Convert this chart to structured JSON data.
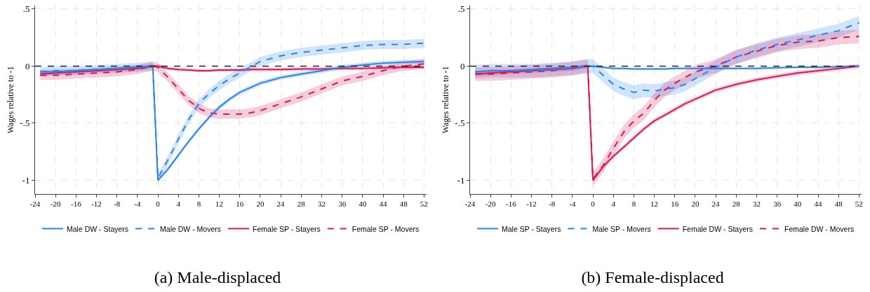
{
  "chart_data": [
    {
      "type": "line",
      "title": "(a) Male-displaced",
      "ylabel": "Wages relative to -1",
      "x": [
        -23,
        -20,
        -16,
        -12,
        -8,
        -4,
        -1,
        0,
        2,
        4,
        6,
        8,
        10,
        12,
        14,
        16,
        18,
        20,
        24,
        28,
        32,
        36,
        40,
        44,
        48,
        52
      ],
      "xlim": [
        -24,
        52.5
      ],
      "xticks": [
        -24,
        -20,
        -16,
        -12,
        -8,
        -4,
        0,
        4,
        8,
        12,
        16,
        20,
        24,
        28,
        32,
        36,
        40,
        44,
        48,
        52
      ],
      "ylim": [
        -1.12,
        0.53
      ],
      "yticks": [
        {
          "value": -1,
          "label": "-1"
        },
        {
          "value": -0.5,
          "label": "-.5"
        },
        0,
        {
          "value": 0.5,
          "label": ".5"
        }
      ],
      "grid": true,
      "legend": "bottom",
      "ref_lines": [
        {
          "axis": "y",
          "value": 0,
          "color": "#222222",
          "line_style": "dashed"
        }
      ],
      "series": [
        {
          "name": "Male DW - Stayers",
          "color": "#2a84f0",
          "line_style": "solid",
          "values": [
            -0.05,
            -0.05,
            -0.04,
            -0.03,
            -0.02,
            -0.01,
            0,
            -1,
            -0.9,
            -0.78,
            -0.66,
            -0.55,
            -0.45,
            -0.36,
            -0.29,
            -0.23,
            -0.19,
            -0.15,
            -0.1,
            -0.07,
            -0.04,
            -0.01,
            0.01,
            0.025,
            0.035,
            0.04
          ],
          "lower": [
            -0.07,
            -0.07,
            -0.06,
            -0.05,
            -0.04,
            -0.03,
            -0.02,
            -1.02,
            -0.92,
            -0.8,
            -0.68,
            -0.57,
            -0.47,
            -0.38,
            -0.31,
            -0.25,
            -0.21,
            -0.17,
            -0.12,
            -0.09,
            -0.06,
            -0.03,
            -0.01,
            0.005,
            0.015,
            0.02
          ],
          "upper": [
            -0.03,
            -0.03,
            -0.02,
            -0.01,
            0,
            0.01,
            0.02,
            -0.98,
            -0.88,
            -0.76,
            -0.64,
            -0.53,
            -0.43,
            -0.34,
            -0.27,
            -0.21,
            -0.17,
            -0.13,
            -0.08,
            -0.05,
            -0.02,
            0.01,
            0.03,
            0.045,
            0.055,
            0.06
          ]
        },
        {
          "name": "Male DW - Movers",
          "color": "#2a84f0",
          "line_style": "dashed",
          "values": [
            -0.05,
            -0.04,
            -0.04,
            -0.03,
            -0.02,
            -0.01,
            0,
            -0.98,
            -0.82,
            -0.64,
            -0.47,
            -0.33,
            -0.24,
            -0.17,
            -0.11,
            -0.06,
            -0.01,
            0.04,
            0.09,
            0.12,
            0.14,
            0.16,
            0.18,
            0.19,
            0.19,
            0.2
          ],
          "lower": [
            -0.09,
            -0.08,
            -0.08,
            -0.07,
            -0.06,
            -0.05,
            -0.04,
            -1.02,
            -0.86,
            -0.68,
            -0.51,
            -0.37,
            -0.28,
            -0.21,
            -0.15,
            -0.1,
            -0.05,
            0,
            0.05,
            0.08,
            0.1,
            0.12,
            0.14,
            0.15,
            0.15,
            0.16
          ],
          "upper": [
            -0.01,
            0,
            0,
            0.01,
            0.02,
            0.03,
            0.04,
            -0.94,
            -0.78,
            -0.6,
            -0.43,
            -0.29,
            -0.2,
            -0.13,
            -0.07,
            -0.02,
            0.03,
            0.08,
            0.13,
            0.16,
            0.18,
            0.2,
            0.22,
            0.23,
            0.23,
            0.24
          ]
        },
        {
          "name": "Female SP - Stayers",
          "color": "#d61a5c",
          "line_style": "solid",
          "values": [
            -0.07,
            -0.06,
            -0.05,
            -0.04,
            -0.03,
            -0.02,
            0,
            0,
            -0.02,
            -0.03,
            -0.035,
            -0.04,
            -0.04,
            -0.035,
            -0.035,
            -0.035,
            -0.03,
            -0.03,
            -0.03,
            -0.025,
            -0.025,
            -0.02,
            -0.02,
            -0.015,
            -0.01,
            -0.01
          ],
          "lower": [
            -0.085,
            -0.075,
            -0.065,
            -0.055,
            -0.045,
            -0.035,
            -0.015,
            -0.015,
            -0.035,
            -0.045,
            -0.05,
            -0.055,
            -0.055,
            -0.05,
            -0.05,
            -0.05,
            -0.045,
            -0.045,
            -0.045,
            -0.04,
            -0.04,
            -0.035,
            -0.035,
            -0.03,
            -0.025,
            -0.025
          ],
          "upper": [
            -0.055,
            -0.045,
            -0.035,
            -0.025,
            -0.015,
            -0.005,
            0.015,
            0.015,
            -0.005,
            -0.015,
            -0.02,
            -0.025,
            -0.025,
            -0.02,
            -0.02,
            -0.02,
            -0.015,
            -0.015,
            -0.015,
            -0.01,
            -0.01,
            -0.005,
            -0.005,
            0,
            0.005,
            0.005
          ]
        },
        {
          "name": "Female SP - Movers",
          "color": "#d61a5c",
          "line_style": "dashed",
          "values": [
            -0.08,
            -0.08,
            -0.07,
            -0.06,
            -0.05,
            -0.03,
            0,
            -0.01,
            -0.1,
            -0.2,
            -0.3,
            -0.37,
            -0.41,
            -0.42,
            -0.42,
            -0.42,
            -0.41,
            -0.39,
            -0.33,
            -0.27,
            -0.2,
            -0.13,
            -0.09,
            -0.04,
            0,
            0.02
          ],
          "lower": [
            -0.12,
            -0.12,
            -0.11,
            -0.1,
            -0.09,
            -0.07,
            -0.04,
            -0.05,
            -0.14,
            -0.24,
            -0.34,
            -0.41,
            -0.45,
            -0.46,
            -0.46,
            -0.46,
            -0.45,
            -0.43,
            -0.37,
            -0.31,
            -0.24,
            -0.17,
            -0.13,
            -0.08,
            -0.04,
            -0.02
          ],
          "upper": [
            -0.04,
            -0.04,
            -0.03,
            -0.02,
            -0.01,
            0.01,
            0.04,
            0.03,
            -0.06,
            -0.16,
            -0.26,
            -0.33,
            -0.37,
            -0.38,
            -0.38,
            -0.38,
            -0.37,
            -0.35,
            -0.29,
            -0.23,
            -0.16,
            -0.09,
            -0.05,
            0,
            0.04,
            0.06
          ]
        }
      ]
    },
    {
      "type": "line",
      "title": "(b) Female-displaced",
      "ylabel": "Wages relative to -1",
      "x": [
        -23,
        -20,
        -16,
        -12,
        -8,
        -4,
        -1,
        0,
        2,
        4,
        6,
        8,
        10,
        12,
        14,
        16,
        18,
        20,
        24,
        28,
        32,
        36,
        40,
        44,
        48,
        52
      ],
      "xlim": [
        -24,
        52.5
      ],
      "xticks": [
        -24,
        -20,
        -16,
        -12,
        -8,
        -4,
        0,
        4,
        8,
        12,
        16,
        20,
        24,
        28,
        32,
        36,
        40,
        44,
        48,
        52
      ],
      "ylim": [
        -1.12,
        0.53
      ],
      "yticks": [
        {
          "value": -1,
          "label": "-1"
        },
        {
          "value": -0.5,
          "label": "-.5"
        },
        0,
        {
          "value": 0.5,
          "label": ".5"
        }
      ],
      "grid": true,
      "legend": "bottom",
      "ref_lines": [
        {
          "axis": "y",
          "value": 0,
          "color": "#222222",
          "line_style": "dashed"
        }
      ],
      "series": [
        {
          "name": "Male SP - Stayers",
          "color": "#2a84f0",
          "line_style": "solid",
          "values": [
            -0.05,
            -0.04,
            -0.04,
            -0.03,
            -0.02,
            -0.01,
            0,
            0,
            -0.01,
            -0.02,
            -0.02,
            -0.025,
            -0.025,
            -0.025,
            -0.025,
            -0.02,
            -0.02,
            -0.02,
            -0.02,
            -0.02,
            -0.02,
            -0.015,
            -0.01,
            -0.01,
            -0.005,
            0
          ],
          "lower": [
            -0.06,
            -0.05,
            -0.05,
            -0.04,
            -0.03,
            -0.02,
            -0.01,
            -0.01,
            -0.02,
            -0.03,
            -0.03,
            -0.035,
            -0.035,
            -0.035,
            -0.035,
            -0.03,
            -0.03,
            -0.03,
            -0.03,
            -0.03,
            -0.03,
            -0.025,
            -0.02,
            -0.02,
            -0.015,
            -0.01
          ],
          "upper": [
            -0.04,
            -0.03,
            -0.03,
            -0.02,
            -0.01,
            0,
            0.01,
            0.01,
            0,
            -0.01,
            -0.01,
            -0.015,
            -0.015,
            -0.015,
            -0.015,
            -0.01,
            -0.01,
            -0.01,
            -0.01,
            -0.01,
            -0.01,
            -0.005,
            0,
            0,
            0.005,
            0.01
          ]
        },
        {
          "name": "Male SP - Movers",
          "color": "#2a84f0",
          "line_style": "dashed",
          "values": [
            -0.05,
            -0.04,
            -0.04,
            -0.04,
            -0.03,
            -0.02,
            0,
            0,
            -0.08,
            -0.16,
            -0.2,
            -0.23,
            -0.21,
            -0.22,
            -0.2,
            -0.19,
            -0.16,
            -0.11,
            -0.01,
            0.08,
            0.14,
            0.19,
            0.23,
            0.27,
            0.31,
            0.38
          ],
          "lower": [
            -0.11,
            -0.1,
            -0.1,
            -0.1,
            -0.09,
            -0.08,
            -0.06,
            -0.06,
            -0.14,
            -0.22,
            -0.26,
            -0.29,
            -0.27,
            -0.28,
            -0.26,
            -0.25,
            -0.22,
            -0.17,
            -0.07,
            0.02,
            0.08,
            0.13,
            0.17,
            0.21,
            0.25,
            0.32
          ],
          "upper": [
            0.01,
            0.02,
            0.02,
            0.02,
            0.03,
            0.04,
            0.06,
            0.06,
            -0.02,
            -0.1,
            -0.14,
            -0.17,
            -0.15,
            -0.16,
            -0.14,
            -0.13,
            -0.1,
            -0.05,
            0.05,
            0.14,
            0.2,
            0.25,
            0.29,
            0.33,
            0.37,
            0.44
          ]
        },
        {
          "name": "Female DW - Stayers",
          "color": "#d61a5c",
          "line_style": "solid",
          "values": [
            -0.07,
            -0.06,
            -0.05,
            -0.04,
            -0.03,
            -0.02,
            0,
            -1,
            -0.88,
            -0.79,
            -0.71,
            -0.63,
            -0.55,
            -0.48,
            -0.43,
            -0.38,
            -0.33,
            -0.29,
            -0.21,
            -0.16,
            -0.12,
            -0.09,
            -0.06,
            -0.04,
            -0.02,
            0
          ],
          "lower": [
            -0.09,
            -0.08,
            -0.07,
            -0.06,
            -0.05,
            -0.04,
            -0.02,
            -1.02,
            -0.9,
            -0.81,
            -0.73,
            -0.65,
            -0.57,
            -0.5,
            -0.45,
            -0.4,
            -0.35,
            -0.31,
            -0.23,
            -0.18,
            -0.14,
            -0.11,
            -0.08,
            -0.06,
            -0.04,
            -0.02
          ],
          "upper": [
            -0.05,
            -0.04,
            -0.03,
            -0.02,
            -0.01,
            0,
            0.02,
            -0.98,
            -0.86,
            -0.77,
            -0.69,
            -0.61,
            -0.53,
            -0.46,
            -0.41,
            -0.36,
            -0.31,
            -0.27,
            -0.19,
            -0.14,
            -0.1,
            -0.07,
            -0.04,
            -0.02,
            0,
            0.02
          ]
        },
        {
          "name": "Female DW - Movers",
          "color": "#d61a5c",
          "line_style": "dashed",
          "values": [
            -0.07,
            -0.07,
            -0.06,
            -0.05,
            -0.04,
            -0.02,
            0,
            -0.99,
            -0.87,
            -0.72,
            -0.58,
            -0.48,
            -0.41,
            -0.3,
            -0.21,
            -0.15,
            -0.1,
            -0.05,
            0,
            0.08,
            0.13,
            0.18,
            0.21,
            0.22,
            0.25,
            0.26
          ],
          "lower": [
            -0.13,
            -0.13,
            -0.12,
            -0.11,
            -0.1,
            -0.08,
            -0.06,
            -1.05,
            -0.93,
            -0.78,
            -0.64,
            -0.54,
            -0.47,
            -0.36,
            -0.27,
            -0.21,
            -0.16,
            -0.11,
            -0.06,
            0.02,
            0.07,
            0.12,
            0.15,
            0.16,
            0.19,
            0.2
          ],
          "upper": [
            -0.01,
            -0.01,
            0,
            0.01,
            0.02,
            0.04,
            0.06,
            -0.93,
            -0.81,
            -0.66,
            -0.52,
            -0.42,
            -0.35,
            -0.24,
            -0.15,
            -0.09,
            -0.04,
            0.01,
            0.06,
            0.14,
            0.19,
            0.24,
            0.27,
            0.28,
            0.31,
            0.32
          ]
        }
      ]
    }
  ]
}
